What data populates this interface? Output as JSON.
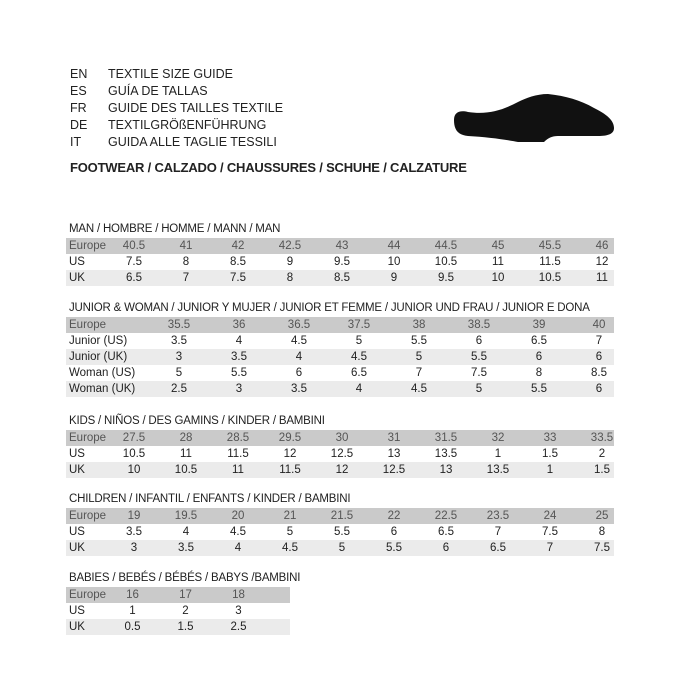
{
  "languages": [
    {
      "code": "EN",
      "label": "TEXTILE SIZE GUIDE"
    },
    {
      "code": "ES",
      "label": "GUÍA DE TALLAS"
    },
    {
      "code": "FR",
      "label": "GUIDE DES TAILLES TEXTILE"
    },
    {
      "code": "DE",
      "label": "TEXTILGRÖßENFÜHRUNG"
    },
    {
      "code": "IT",
      "label": "GUIDA ALLE TAGLIE TESSILI"
    }
  ],
  "footwear_title": "FOOTWEAR / CALZADO / CHAUSSURES / SCHUHE / CALZATURE",
  "icon": "shoe-icon",
  "colors": {
    "header_row": "#cacaca",
    "alt_row": "#ebebeb"
  },
  "tables": [
    {
      "key": "man",
      "title": "MAN / HOMBRE / HOMME / MANN / MAN",
      "rows": [
        {
          "label": "Europe",
          "values": [
            "40.5",
            "41",
            "42",
            "42.5",
            "43",
            "44",
            "44.5",
            "45",
            "45.5",
            "46"
          ]
        },
        {
          "label": "US",
          "values": [
            "7.5",
            "8",
            "8.5",
            "9",
            "9.5",
            "10",
            "10.5",
            "11",
            "11.5",
            "12"
          ]
        },
        {
          "label": "UK",
          "values": [
            "6.5",
            "7",
            "7.5",
            "8",
            "8.5",
            "9",
            "9.5",
            "10",
            "10.5",
            "11"
          ]
        }
      ]
    },
    {
      "key": "junior",
      "title": "JUNIOR & WOMAN / JUNIOR Y MUJER / JUNIOR ET FEMME / JUNIOR UND FRAU / JUNIOR E DONA",
      "rows": [
        {
          "label": "Europe",
          "values": [
            "35.5",
            "36",
            "36.5",
            "37.5",
            "38",
            "38.5",
            "39",
            "40"
          ]
        },
        {
          "label": "Junior (US)",
          "values": [
            "3.5",
            "4",
            "4.5",
            "5",
            "5.5",
            "6",
            "6.5",
            "7"
          ]
        },
        {
          "label": "Junior (UK)",
          "values": [
            "3",
            "3.5",
            "4",
            "4.5",
            "5",
            "5.5",
            "6",
            "6"
          ]
        },
        {
          "label": "Woman (US)",
          "values": [
            "5",
            "5.5",
            "6",
            "6.5",
            "7",
            "7.5",
            "8",
            "8.5"
          ]
        },
        {
          "label": "Woman (UK)",
          "values": [
            "2.5",
            "3",
            "3.5",
            "4",
            "4.5",
            "5",
            "5.5",
            "6"
          ]
        }
      ]
    },
    {
      "key": "kids",
      "title": "KIDS / NIÑOS / DES GAMINS / KINDER / BAMBINI",
      "rows": [
        {
          "label": "Europe",
          "values": [
            "27.5",
            "28",
            "28.5",
            "29.5",
            "30",
            "31",
            "31.5",
            "32",
            "33",
            "33.5"
          ]
        },
        {
          "label": "US",
          "values": [
            "10.5",
            "11",
            "11.5",
            "12",
            "12.5",
            "13",
            "13.5",
            "1",
            "1.5",
            "2"
          ]
        },
        {
          "label": "UK",
          "values": [
            "10",
            "10.5",
            "11",
            "11.5",
            "12",
            "12.5",
            "13",
            "13.5",
            "1",
            "1.5"
          ]
        }
      ]
    },
    {
      "key": "children",
      "title": "CHILDREN / INFANTIL / ENFANTS / KINDER / BAMBINI",
      "rows": [
        {
          "label": "Europe",
          "values": [
            "19",
            "19.5",
            "20",
            "21",
            "21.5",
            "22",
            "22.5",
            "23.5",
            "24",
            "25"
          ]
        },
        {
          "label": "US",
          "values": [
            "3.5",
            "4",
            "4.5",
            "5",
            "5.5",
            "6",
            "6.5",
            "7",
            "7.5",
            "8"
          ]
        },
        {
          "label": "UK",
          "values": [
            "3",
            "3.5",
            "4",
            "4.5",
            "5",
            "5.5",
            "6",
            "6.5",
            "7",
            "7.5"
          ]
        }
      ]
    },
    {
      "key": "babies",
      "title": "BABIES  / BEBÉS / BÉBÉS / BABYS /BAMBINI",
      "rows": [
        {
          "label": "Europe",
          "values": [
            "16",
            "17",
            "18"
          ]
        },
        {
          "label": "US",
          "values": [
            "1",
            "2",
            "3"
          ]
        },
        {
          "label": "UK",
          "values": [
            "0.5",
            "1.5",
            "2.5"
          ]
        }
      ]
    }
  ]
}
